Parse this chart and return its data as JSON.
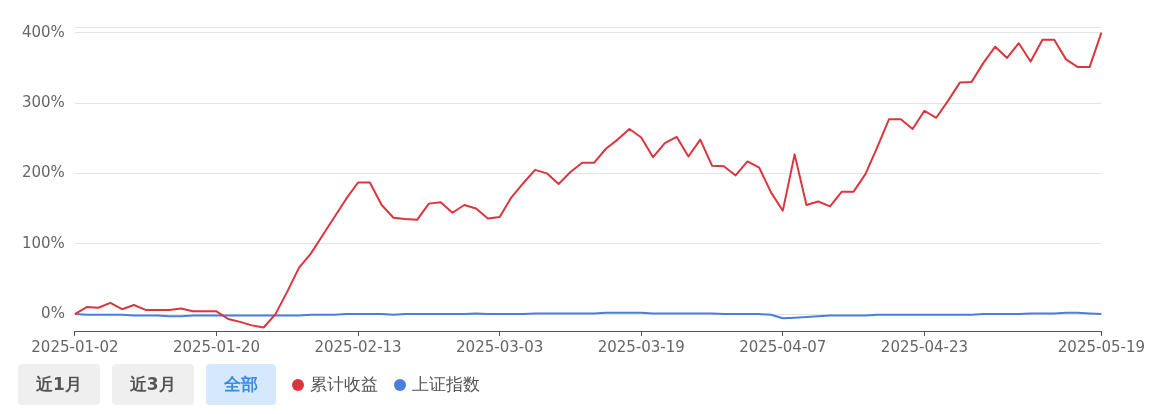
{
  "chart_data": {
    "type": "line",
    "categories": [
      "2025-01-02",
      null,
      null,
      null,
      null,
      null,
      null,
      null,
      null,
      null,
      null,
      null,
      "2025-01-20",
      null,
      null,
      null,
      null,
      null,
      null,
      null,
      null,
      null,
      null,
      null,
      "2025-02-13",
      null,
      null,
      null,
      null,
      null,
      null,
      null,
      null,
      null,
      null,
      null,
      "2025-03-03",
      null,
      null,
      null,
      null,
      null,
      null,
      null,
      null,
      null,
      null,
      null,
      "2025-03-19",
      null,
      null,
      null,
      null,
      null,
      null,
      null,
      null,
      null,
      null,
      null,
      "2025-04-07",
      null,
      null,
      null,
      null,
      null,
      null,
      null,
      null,
      null,
      null,
      null,
      "2025-04-23",
      null,
      null,
      null,
      null,
      null,
      null,
      null,
      null,
      null,
      null,
      null,
      null,
      null,
      null,
      "2025-05-19"
    ],
    "series": [
      {
        "name": "累计收益",
        "color": "#d9363e",
        "values": [
          0,
          10,
          9,
          16,
          7,
          13,
          6,
          6,
          6,
          8,
          4,
          4,
          4,
          -7,
          -11,
          -16,
          -19,
          0,
          32,
          66,
          86,
          112,
          138,
          164,
          187,
          187,
          155,
          137,
          135,
          134,
          157,
          159,
          144,
          155,
          150,
          136,
          138,
          166,
          186,
          205,
          200,
          185,
          202,
          215,
          215,
          235,
          248,
          263,
          251,
          223,
          243,
          252,
          224,
          248,
          211,
          210,
          197,
          217,
          208,
          173,
          147,
          227,
          155,
          160,
          153,
          174,
          174,
          199,
          237,
          277,
          277,
          263,
          289,
          279,
          303,
          329,
          330,
          357,
          380,
          364,
          385,
          359,
          390,
          390,
          362,
          351,
          351,
          400
        ]
      },
      {
        "name": "上证指数",
        "color": "#4a7fd8",
        "values": [
          0,
          -1,
          -1,
          -1,
          -1,
          -2,
          -2,
          -2,
          -3,
          -3,
          -2,
          -2,
          -2,
          -2,
          -2,
          -2,
          -2,
          -2,
          -2,
          -2,
          -1,
          -1,
          -1,
          0,
          0,
          0,
          0,
          -1,
          0,
          0,
          0,
          0,
          0,
          0,
          1,
          0,
          0,
          0,
          0,
          1,
          1,
          1,
          1,
          1,
          1,
          2,
          2,
          2,
          2,
          1,
          1,
          1,
          1,
          1,
          1,
          0,
          0,
          0,
          0,
          -1,
          -6,
          -5,
          -4,
          -3,
          -2,
          -2,
          -2,
          -2,
          -1,
          -1,
          -1,
          -1,
          -1,
          -1,
          -1,
          -1,
          -1,
          0,
          0,
          0,
          0,
          1,
          1,
          1,
          2,
          2,
          1,
          0
        ]
      }
    ],
    "ylim": [
      -24,
      408
    ],
    "yticks": [
      {
        "value": -24,
        "label": null
      },
      {
        "value": 0,
        "label": "0%"
      },
      {
        "value": 100,
        "label": "100%"
      },
      {
        "value": 200,
        "label": "200%"
      },
      {
        "value": 300,
        "label": "300%"
      },
      {
        "value": 400,
        "label": "400%"
      },
      {
        "value": 408,
        "label": null
      }
    ],
    "grid": "y",
    "legend": "bottom left",
    "marker": "none",
    "line_style": "solid",
    "annotations": [
      "近1月",
      "近3月",
      "全部"
    ]
  }
}
